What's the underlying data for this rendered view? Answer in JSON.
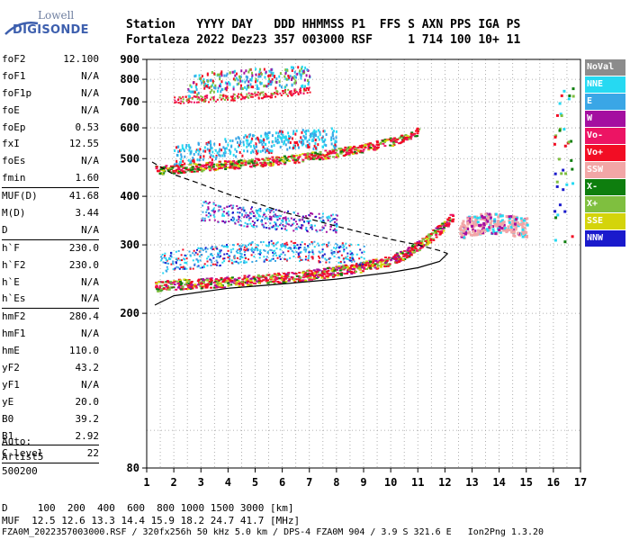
{
  "logo": {
    "line1": "Lowell",
    "line2": "DIGISONDE"
  },
  "header": {
    "line1": "Station   YYYY DAY   DDD HHMMSS P1  FFS S AXN PPS IGA PS",
    "line2": "Fortaleza 2022 Dez23 357 003000 RSF     1 714 100 10+ 11"
  },
  "params": [
    {
      "name": "foF2",
      "value": "12.100",
      "sep": false
    },
    {
      "name": "foF1",
      "value": "N/A",
      "sep": false
    },
    {
      "name": "foF1p",
      "value": "N/A",
      "sep": false
    },
    {
      "name": "foE",
      "value": "N/A",
      "sep": false
    },
    {
      "name": "foEp",
      "value": "0.53",
      "sep": false
    },
    {
      "name": "fxI",
      "value": "12.55",
      "sep": false
    },
    {
      "name": "foEs",
      "value": "N/A",
      "sep": false
    },
    {
      "name": "fmin",
      "value": "1.60",
      "sep": false
    },
    {
      "name": "MUF(D)",
      "value": "41.68",
      "sep": true
    },
    {
      "name": "M(D)",
      "value": "3.44",
      "sep": false
    },
    {
      "name": "D",
      "value": "N/A",
      "sep": false
    },
    {
      "name": "h`F",
      "value": "230.0",
      "sep": true
    },
    {
      "name": "h`F2",
      "value": "230.0",
      "sep": false
    },
    {
      "name": "h`E",
      "value": "N/A",
      "sep": false
    },
    {
      "name": "h`Es",
      "value": "N/A",
      "sep": false
    },
    {
      "name": "hmF2",
      "value": "280.4",
      "sep": true
    },
    {
      "name": "hmF1",
      "value": "N/A",
      "sep": false
    },
    {
      "name": "hmE",
      "value": "110.0",
      "sep": false
    },
    {
      "name": "yF2",
      "value": "43.2",
      "sep": false
    },
    {
      "name": "yF1",
      "value": "N/A",
      "sep": false
    },
    {
      "name": "yE",
      "value": "20.0",
      "sep": false
    },
    {
      "name": "B0",
      "value": "39.2",
      "sep": false
    },
    {
      "name": "B1",
      "value": "2.92",
      "sep": false
    },
    {
      "name": "C-level",
      "value": "22",
      "sep": true
    }
  ],
  "auto": {
    "line1": "Auto:",
    "line2": "Artist5",
    "line3": "500200"
  },
  "footer": {
    "line1": "D     100  200  400  600  800 1000 1500 3000 [km]",
    "line2": "MUF  12.5 12.6 13.3 14.4 15.9 18.2 24.7 41.7 [MHz]",
    "line3": "FZA0M_2022357003000.RSF / 320fx256h 50 kHz 5.0 km / DPS-4 FZA0M 904 / 3.9 S 321.6 E   Ion2Png 1.3.20"
  },
  "legend": [
    {
      "label": "NoVal",
      "color": "#8c8c8c"
    },
    {
      "label": "NNE",
      "color": "#26d9f2"
    },
    {
      "label": "E",
      "color": "#3aa6e6"
    },
    {
      "label": "W",
      "color": "#a40fa0"
    },
    {
      "label": "Vo-",
      "color": "#ec1464"
    },
    {
      "label": "Vo+",
      "color": "#f20d24"
    },
    {
      "label": "SSW",
      "color": "#f2a6a6"
    },
    {
      "label": "X-",
      "color": "#0e7e0e"
    },
    {
      "label": "X+",
      "color": "#7fbf3f"
    },
    {
      "label": "SSE",
      "color": "#d4d40a"
    },
    {
      "label": "NNW",
      "color": "#1a1acc"
    }
  ],
  "chart_data": {
    "type": "scatter",
    "title": "",
    "xlabel": "",
    "ylabel": "",
    "xlim": [
      1,
      17
    ],
    "ylim": [
      80,
      900
    ],
    "y_scale": "log",
    "x_ticks": [
      1,
      2,
      3,
      4,
      5,
      6,
      7,
      8,
      9,
      10,
      11,
      12,
      13,
      14,
      15,
      16,
      17
    ],
    "y_ticks": [
      80,
      200,
      300,
      400,
      500,
      600,
      700,
      800,
      900
    ],
    "grid": true,
    "legend_position": "right",
    "ionogram_traces": [
      {
        "name": "F2 trace (1st hop)",
        "x": [
          1.3,
          2,
          3,
          4,
          5,
          6,
          7,
          8,
          9,
          10,
          10.5,
          11,
          11.5,
          12,
          12.3
        ],
        "y": [
          235,
          238,
          240,
          242,
          245,
          248,
          252,
          258,
          265,
          275,
          285,
          300,
          318,
          340,
          360
        ]
      },
      {
        "name": "F2 trace (2nd hop)",
        "x": [
          1.3,
          2,
          3,
          4,
          5,
          6,
          7,
          8,
          9,
          10,
          10.5,
          11
        ],
        "y": [
          468,
          472,
          478,
          484,
          490,
          498,
          508,
          520,
          535,
          555,
          570,
          590
        ]
      },
      {
        "name": "F2 trace (3rd hop)",
        "x": [
          2,
          3,
          4,
          5,
          6,
          7
        ],
        "y": [
          710,
          715,
          722,
          730,
          740,
          752
        ]
      },
      {
        "name": "spread F",
        "x": [
          12.5,
          13,
          13.5,
          14,
          14.5,
          15
        ],
        "y": [
          330,
          340,
          345,
          342,
          338,
          335
        ]
      },
      {
        "name": "profile (solid)",
        "x": [
          1.3,
          2,
          4,
          6,
          8,
          10,
          11,
          11.8,
          12.1
        ],
        "y": [
          210,
          222,
          232,
          238,
          245,
          255,
          262,
          272,
          285
        ]
      },
      {
        "name": "profile (dashed)",
        "x": [
          1.2,
          2,
          3,
          4,
          5,
          6,
          7,
          8,
          9,
          10,
          11,
          11.8,
          12.1
        ],
        "y": [
          490,
          455,
          430,
          405,
          385,
          365,
          350,
          335,
          322,
          310,
          300,
          290,
          285
        ]
      }
    ]
  }
}
